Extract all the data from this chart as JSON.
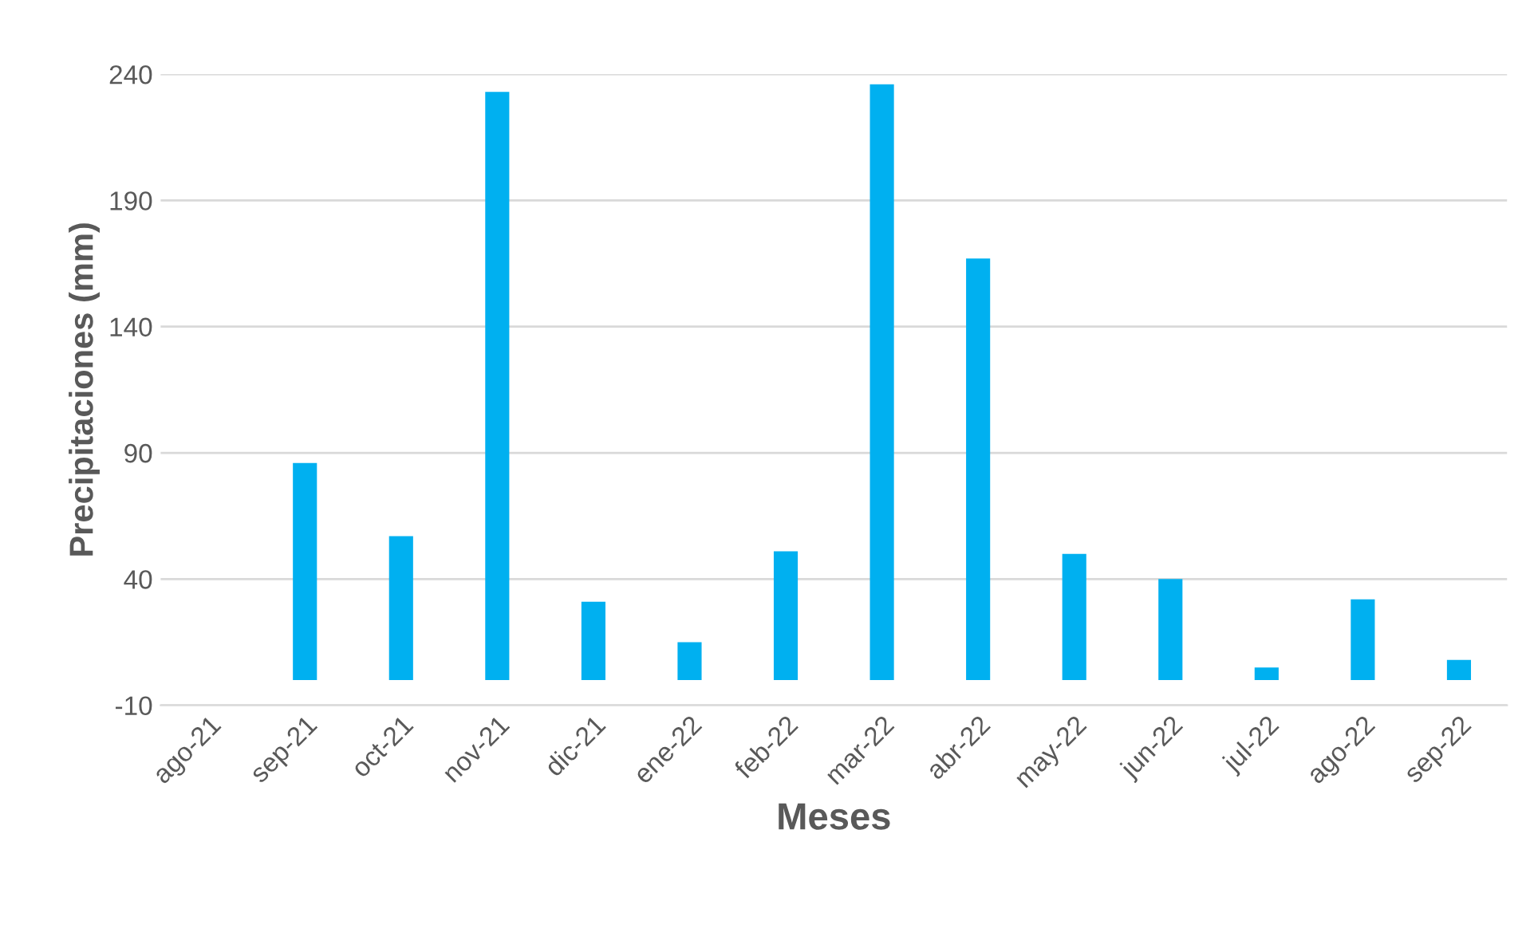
{
  "chart_data": {
    "type": "bar",
    "xlabel": "Meses",
    "ylabel": "Precipitaciones (mm)",
    "categories": [
      "ago-21",
      "sep-21",
      "oct-21",
      "nov-21",
      "dic-21",
      "ene-22",
      "feb-22",
      "mar-22",
      "abr-22",
      "may-22",
      "jun-22",
      "jul-22",
      "ago-22",
      "sep-22"
    ],
    "values": [
      0,
      86,
      57,
      233,
      31,
      15,
      51,
      236,
      167,
      50,
      40,
      5,
      32,
      8
    ],
    "color": "#00b0f0",
    "ylim": [
      -10,
      240
    ],
    "yticks": [
      -10,
      40,
      90,
      140,
      190,
      240
    ],
    "grid": "y"
  }
}
